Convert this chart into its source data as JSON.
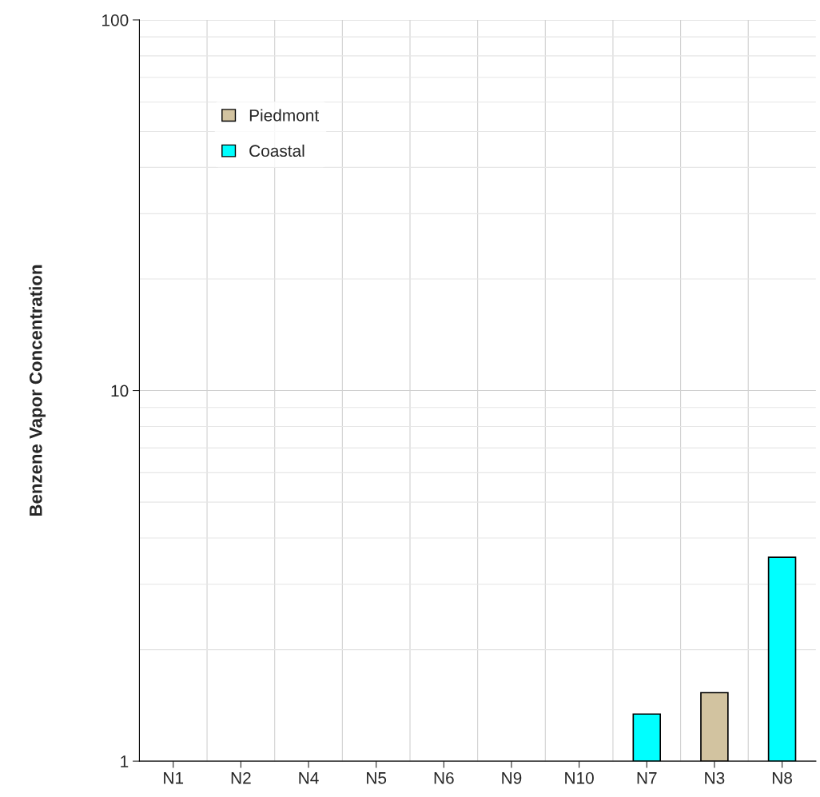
{
  "chart_data": {
    "type": "bar",
    "ylabel": "Benzene Vapor Concentration",
    "categories": [
      "N1",
      "N2",
      "N4",
      "N5",
      "N6",
      "N9",
      "N10",
      "N7",
      "N3",
      "N8"
    ],
    "series": [
      {
        "name": "Piedmont",
        "color": "#d2c3a0",
        "values": [
          null,
          null,
          null,
          null,
          null,
          null,
          null,
          null,
          1.53,
          null
        ]
      },
      {
        "name": "Coastal",
        "color": "#00ffff",
        "values": [
          null,
          null,
          null,
          null,
          null,
          null,
          null,
          1.34,
          null,
          3.55
        ]
      }
    ],
    "log": true,
    "ylim": [
      1,
      100
    ],
    "yticks": [
      1,
      10,
      100
    ],
    "grid": true,
    "legend": "top left"
  }
}
